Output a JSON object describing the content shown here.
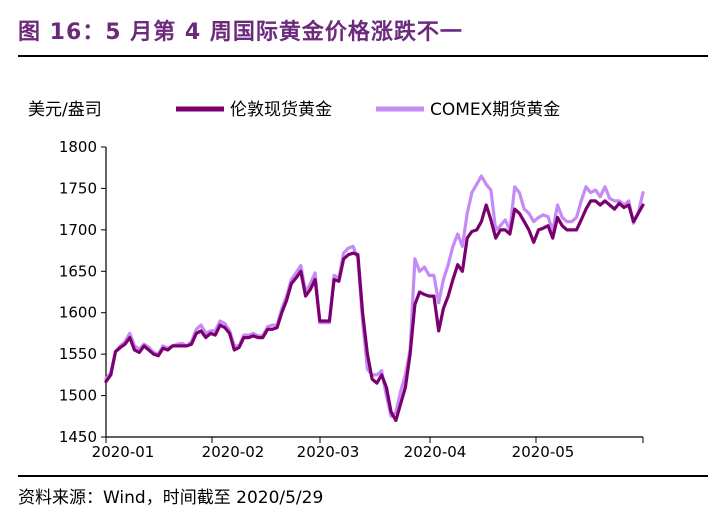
{
  "title": "图 16：5 月第 4 周国际黄金价格涨跌不一",
  "source": "资料来源：Wind，时间截至 2020/5/29",
  "chart_data": {
    "type": "line",
    "ylabel": "美元/盎司",
    "ylim": [
      1450,
      1800
    ],
    "yticks": [
      "1800",
      "1750",
      "1700",
      "1650",
      "1600",
      "1550",
      "1500",
      "1450"
    ],
    "xticks": [
      "2020-01",
      "2020-02",
      "2020-03",
      "2020-04",
      "2020-05"
    ],
    "legend_position": "top",
    "series": [
      {
        "name": "伦敦现货黄金",
        "color": "#7b006f",
        "values": [
          1517,
          1525,
          1553,
          1558,
          1562,
          1570,
          1555,
          1552,
          1560,
          1555,
          1550,
          1548,
          1557,
          1555,
          1560,
          1560,
          1560,
          1560,
          1562,
          1575,
          1578,
          1570,
          1575,
          1573,
          1585,
          1582,
          1575,
          1555,
          1558,
          1570,
          1570,
          1572,
          1570,
          1570,
          1580,
          1580,
          1582,
          1600,
          1615,
          1635,
          1642,
          1650,
          1620,
          1628,
          1640,
          1590,
          1590,
          1590,
          1640,
          1638,
          1665,
          1670,
          1672,
          1670,
          1600,
          1550,
          1520,
          1515,
          1525,
          1510,
          1480,
          1470,
          1490,
          1510,
          1550,
          1610,
          1625,
          1622,
          1620,
          1620,
          1578,
          1605,
          1620,
          1640,
          1658,
          1650,
          1690,
          1698,
          1700,
          1710,
          1730,
          1712,
          1690,
          1700,
          1700,
          1695,
          1725,
          1720,
          1710,
          1700,
          1685,
          1700,
          1702,
          1705,
          1690,
          1715,
          1705,
          1700,
          1700,
          1700,
          1712,
          1725,
          1735,
          1735,
          1730,
          1735,
          1730,
          1725,
          1732,
          1727,
          1730,
          1710,
          1720,
          1730
        ]
      },
      {
        "name": "COMEX期货黄金",
        "color": "#c48af6",
        "values": [
          1520,
          1528,
          1553,
          1560,
          1565,
          1575,
          1560,
          1556,
          1562,
          1558,
          1552,
          1550,
          1560,
          1557,
          1560,
          1562,
          1563,
          1560,
          1565,
          1580,
          1585,
          1575,
          1578,
          1578,
          1590,
          1587,
          1578,
          1560,
          1560,
          1573,
          1573,
          1575,
          1572,
          1572,
          1583,
          1585,
          1585,
          1605,
          1620,
          1640,
          1648,
          1657,
          1625,
          1635,
          1648,
          1588,
          1588,
          1588,
          1645,
          1642,
          1672,
          1678,
          1680,
          1665,
          1590,
          1532,
          1525,
          1525,
          1530,
          1500,
          1475,
          1480,
          1505,
          1525,
          1555,
          1665,
          1650,
          1655,
          1645,
          1645,
          1612,
          1640,
          1658,
          1680,
          1695,
          1680,
          1720,
          1745,
          1755,
          1765,
          1755,
          1748,
          1700,
          1705,
          1712,
          1700,
          1752,
          1745,
          1725,
          1720,
          1710,
          1715,
          1718,
          1716,
          1698,
          1730,
          1715,
          1710,
          1710,
          1715,
          1735,
          1752,
          1745,
          1748,
          1740,
          1752,
          1738,
          1735,
          1735,
          1730,
          1735,
          1708,
          1720,
          1745
        ]
      }
    ]
  }
}
